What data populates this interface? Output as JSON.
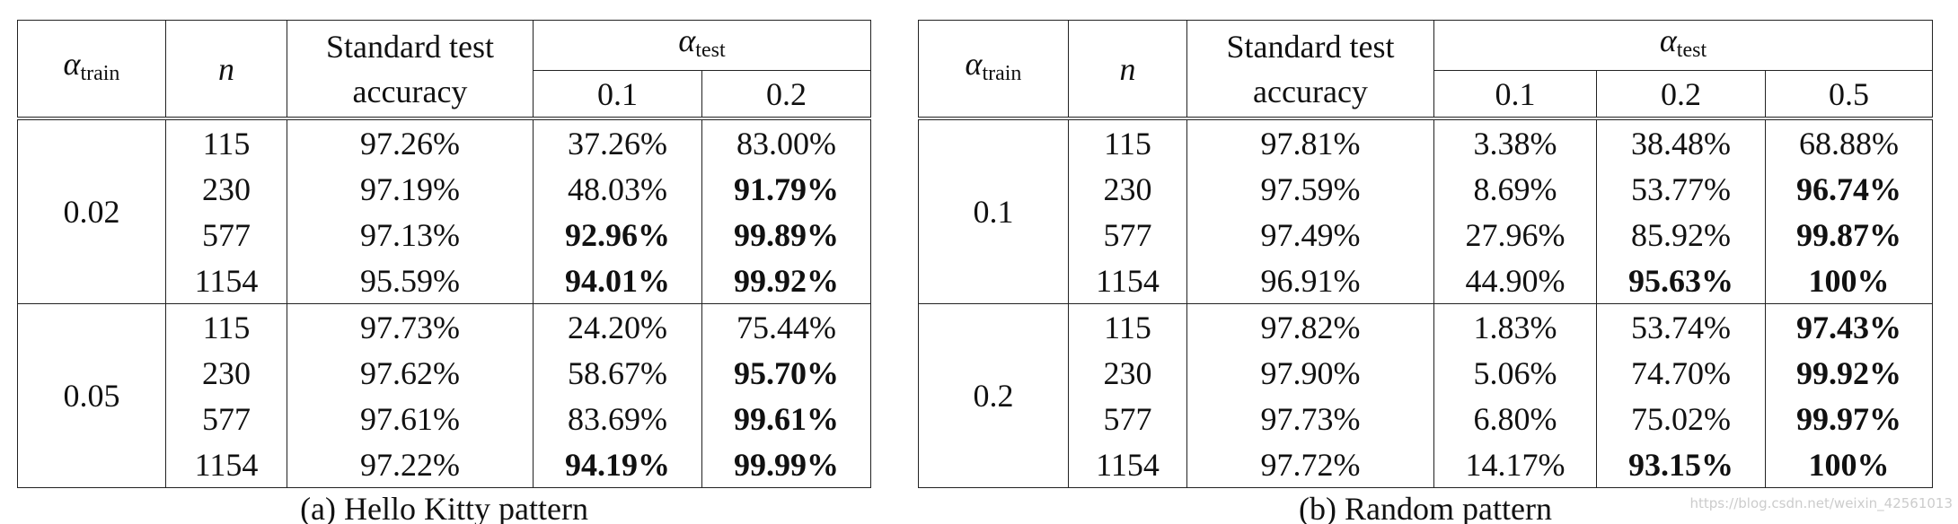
{
  "tables": [
    {
      "caption": "(a) Hello Kitty pattern",
      "header": {
        "alpha": "α",
        "train_sub": "train",
        "n": "n",
        "standard": [
          "Standard test",
          "accuracy"
        ],
        "test_sub": "test",
        "alpha_values": [
          "0.1",
          "0.2"
        ]
      },
      "groups": [
        {
          "alpha_train": "0.02",
          "rows": [
            {
              "n": "115",
              "standard": "97.26%",
              "results": [
                "37.26%",
                "83.00%"
              ],
              "bold": [
                false,
                false
              ]
            },
            {
              "n": "230",
              "standard": "97.19%",
              "results": [
                "48.03%",
                "91.79%"
              ],
              "bold": [
                false,
                true
              ]
            },
            {
              "n": "577",
              "standard": "97.13%",
              "results": [
                "92.96%",
                "99.89%"
              ],
              "bold": [
                true,
                true
              ]
            },
            {
              "n": "1154",
              "standard": "95.59%",
              "results": [
                "94.01%",
                "99.92%"
              ],
              "bold": [
                true,
                true
              ]
            }
          ]
        },
        {
          "alpha_train": "0.05",
          "rows": [
            {
              "n": "115",
              "standard": "97.73%",
              "results": [
                "24.20%",
                "75.44%"
              ],
              "bold": [
                false,
                false
              ]
            },
            {
              "n": "230",
              "standard": "97.62%",
              "results": [
                "58.67%",
                "95.70%"
              ],
              "bold": [
                false,
                true
              ]
            },
            {
              "n": "577",
              "standard": "97.61%",
              "results": [
                "83.69%",
                "99.61%"
              ],
              "bold": [
                false,
                true
              ]
            },
            {
              "n": "1154",
              "standard": "97.22%",
              "results": [
                "94.19%",
                "99.99%"
              ],
              "bold": [
                true,
                true
              ]
            }
          ]
        }
      ]
    },
    {
      "caption": "(b) Random pattern",
      "header": {
        "alpha": "α",
        "train_sub": "train",
        "n": "n",
        "standard": [
          "Standard test",
          "accuracy"
        ],
        "test_sub": "test",
        "alpha_values": [
          "0.1",
          "0.2",
          "0.5"
        ]
      },
      "groups": [
        {
          "alpha_train": "0.1",
          "rows": [
            {
              "n": "115",
              "standard": "97.81%",
              "results": [
                "3.38%",
                "38.48%",
                "68.88%"
              ],
              "bold": [
                false,
                false,
                false
              ]
            },
            {
              "n": "230",
              "standard": "97.59%",
              "results": [
                "8.69%",
                "53.77%",
                "96.74%"
              ],
              "bold": [
                false,
                false,
                true
              ]
            },
            {
              "n": "577",
              "standard": "97.49%",
              "results": [
                "27.96%",
                "85.92%",
                "99.87%"
              ],
              "bold": [
                false,
                false,
                true
              ]
            },
            {
              "n": "1154",
              "standard": "96.91%",
              "results": [
                "44.90%",
                "95.63%",
                "100%"
              ],
              "bold": [
                false,
                true,
                true
              ]
            }
          ]
        },
        {
          "alpha_train": "0.2",
          "rows": [
            {
              "n": "115",
              "standard": "97.82%",
              "results": [
                "1.83%",
                "53.74%",
                "97.43%"
              ],
              "bold": [
                false,
                false,
                true
              ]
            },
            {
              "n": "230",
              "standard": "97.90%",
              "results": [
                "5.06%",
                "74.70%",
                "99.92%"
              ],
              "bold": [
                false,
                false,
                true
              ]
            },
            {
              "n": "577",
              "standard": "97.73%",
              "results": [
                "6.80%",
                "75.02%",
                "99.97%"
              ],
              "bold": [
                false,
                false,
                true
              ]
            },
            {
              "n": "1154",
              "standard": "97.72%",
              "results": [
                "14.17%",
                "93.15%",
                "100%"
              ],
              "bold": [
                false,
                true,
                true
              ]
            }
          ]
        }
      ]
    }
  ],
  "watermark": "https://blog.csdn.net/weixin_42561013"
}
